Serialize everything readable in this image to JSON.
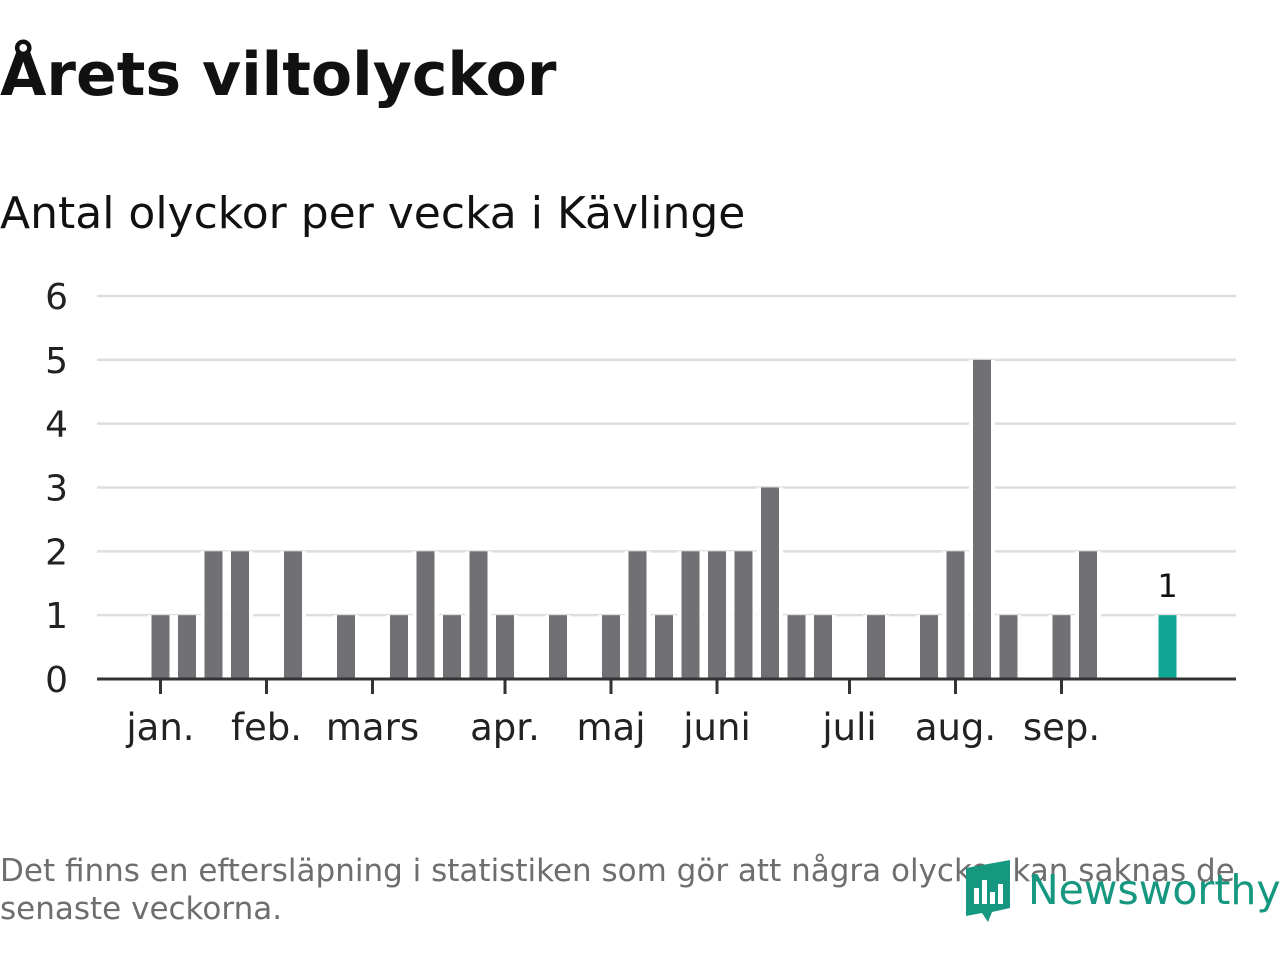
{
  "title": "Årets viltolyckor",
  "subtitle": "Antal olyckor per vecka i Kävlinge",
  "footnote": "Det finns en eftersläpning i statistiken som gör att några olyckor kan saknas de senaste veckorna.",
  "brand": {
    "name": "Newsworthy",
    "icon": "newsworthy-logo-icon"
  },
  "colors": {
    "bar": "#707075",
    "highlight": "#10a797",
    "grid": "#dedede",
    "axis": "#333333",
    "brand": "#16977f"
  },
  "chart_data": {
    "type": "bar",
    "title": "Antal olyckor per vecka i Kävlinge",
    "xlabel": "",
    "ylabel": "",
    "ylim": [
      0,
      6
    ],
    "yticks": [
      0,
      1,
      2,
      3,
      4,
      5,
      6
    ],
    "grid": true,
    "weeks": [
      1,
      2,
      3,
      4,
      5,
      6,
      7,
      8,
      9,
      10,
      11,
      12,
      13,
      14,
      15,
      16,
      17,
      18,
      19,
      20,
      21,
      22,
      23,
      24,
      25,
      26,
      27,
      28,
      29,
      30,
      31,
      32,
      33,
      34,
      35,
      36,
      37,
      38,
      39,
      40,
      41
    ],
    "values": [
      0,
      0,
      1,
      1,
      2,
      2,
      0,
      2,
      0,
      1,
      0,
      1,
      2,
      1,
      2,
      1,
      0,
      1,
      0,
      1,
      2,
      1,
      2,
      2,
      2,
      3,
      1,
      1,
      0,
      1,
      0,
      1,
      2,
      5,
      1,
      0,
      1,
      2,
      0,
      0,
      1
    ],
    "highlight": {
      "week": 41,
      "label": "1"
    },
    "month_ticks": [
      {
        "label": "jan.",
        "week": 3
      },
      {
        "label": "feb.",
        "week": 7
      },
      {
        "label": "mars",
        "week": 11
      },
      {
        "label": "apr.",
        "week": 16
      },
      {
        "label": "maj",
        "week": 20
      },
      {
        "label": "juni",
        "week": 24
      },
      {
        "label": "juli",
        "week": 29
      },
      {
        "label": "aug.",
        "week": 33
      },
      {
        "label": "sep.",
        "week": 37
      }
    ]
  }
}
